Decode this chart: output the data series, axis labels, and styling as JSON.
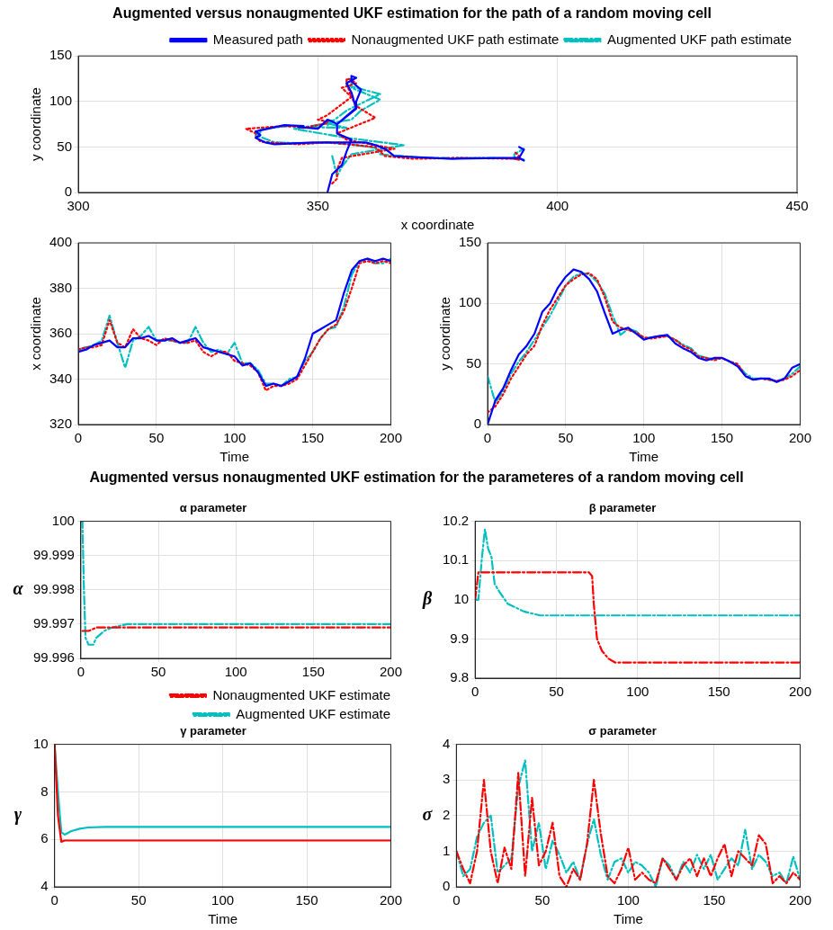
{
  "chart_data": [
    {
      "type": "line",
      "title": "Augmented versus nonaugmented UKF estimation for the path of a random moving cell",
      "xlabel": "x coordinate",
      "ylabel": "y coordinate",
      "xlim": [
        300,
        450
      ],
      "xticks": [
        300,
        350,
        400,
        450
      ],
      "ylim": [
        0,
        150
      ],
      "yticks": [
        0,
        50,
        100,
        150
      ],
      "grid": true,
      "legend": "top right",
      "marker": "none",
      "series": [
        {
          "name": "Measured path",
          "color": "#0000ff",
          "line_style": "solid",
          "x": [
            352,
            353,
            355,
            356,
            357,
            354,
            354,
            358,
            358,
            359,
            357,
            357,
            358,
            356,
            357,
            358,
            354,
            353,
            352,
            351,
            350,
            346,
            347,
            343,
            337,
            338,
            337,
            339,
            341,
            349,
            360,
            362,
            364,
            366,
            378,
            388,
            392,
            393,
            392,
            393,
            392
          ],
          "values": [
            0,
            20,
            30,
            45,
            58,
            65,
            75,
            93,
            100,
            113,
            122,
            128,
            126,
            120,
            110,
            92,
            75,
            78,
            80,
            75,
            70,
            72,
            73,
            74,
            67,
            63,
            60,
            55,
            53,
            55,
            55,
            52,
            48,
            40,
            37,
            38,
            38,
            35,
            38,
            47,
            50
          ]
        },
        {
          "name": "Nonaugmented UKF path estimate",
          "color": "#ff0000",
          "line_style": "dotted",
          "x": [
            353,
            354,
            354,
            355,
            366,
            356,
            354,
            362,
            358,
            357,
            355,
            358,
            357,
            356,
            356,
            357,
            352,
            350,
            352,
            352,
            348,
            347,
            346,
            343,
            335,
            337,
            337,
            338,
            340,
            346,
            352,
            358,
            362,
            364,
            370,
            380,
            391,
            392,
            391,
            392,
            391
          ],
          "values": [
            10,
            15,
            25,
            38,
            48,
            58,
            65,
            82,
            95,
            105,
            115,
            120,
            124,
            125,
            120,
            105,
            85,
            80,
            78,
            76,
            72,
            71,
            72,
            73,
            70,
            65,
            62,
            56,
            55,
            53,
            55,
            52,
            50,
            40,
            37,
            38,
            37,
            36,
            37,
            40,
            45
          ]
        },
        {
          "name": "Augmented UKF path estimate",
          "color": "#00bfbf",
          "line_style": "dashed",
          "x": [
            353,
            354,
            355,
            357,
            368,
            356,
            345,
            357,
            359,
            363,
            357,
            357,
            357,
            356,
            356,
            363,
            356,
            352,
            353,
            351,
            356,
            347,
            347,
            344,
            338,
            338,
            337,
            340,
            341,
            348,
            352,
            358,
            362,
            363,
            372,
            386,
            392,
            393,
            391,
            391,
            393
          ],
          "values": [
            40,
            18,
            28,
            42,
            52,
            60,
            70,
            80,
            90,
            102,
            115,
            122,
            125,
            124,
            118,
            108,
            90,
            74,
            79,
            77,
            71,
            72,
            73,
            73,
            70,
            66,
            63,
            57,
            55,
            54,
            55,
            52,
            49,
            42,
            38,
            38,
            37,
            36,
            38,
            42,
            48
          ]
        }
      ]
    },
    {
      "type": "line",
      "xlabel": "Time",
      "ylabel": "x coordinate",
      "xlim": [
        0,
        200
      ],
      "xticks": [
        0,
        50,
        100,
        150,
        200
      ],
      "ylim": [
        320,
        400
      ],
      "yticks": [
        320,
        340,
        360,
        380,
        400
      ],
      "grid": true,
      "marker": "none",
      "x": [
        0,
        5,
        10,
        15,
        20,
        25,
        30,
        35,
        40,
        45,
        50,
        55,
        60,
        65,
        70,
        75,
        80,
        85,
        90,
        95,
        100,
        105,
        110,
        115,
        120,
        125,
        130,
        135,
        140,
        145,
        150,
        155,
        160,
        165,
        170,
        175,
        180,
        185,
        190,
        195,
        200
      ],
      "series": [
        {
          "color": "#0000ff",
          "line_style": "solid",
          "values": [
            352,
            353,
            355,
            356,
            357,
            354,
            354,
            358,
            358,
            359,
            357,
            357,
            358,
            356,
            357,
            358,
            354,
            353,
            352,
            351,
            350,
            346,
            347,
            343,
            337,
            338,
            337,
            339,
            341,
            349,
            360,
            362,
            364,
            366,
            378,
            388,
            392,
            393,
            392,
            393,
            392
          ]
        },
        {
          "color": "#ff0000",
          "line_style": "dotted",
          "values": [
            353,
            354,
            354,
            355,
            366,
            356,
            354,
            362,
            358,
            357,
            355,
            358,
            357,
            356,
            356,
            357,
            352,
            350,
            352,
            352,
            348,
            347,
            346,
            343,
            335,
            337,
            337,
            338,
            340,
            346,
            352,
            358,
            362,
            364,
            370,
            380,
            391,
            392,
            391,
            392,
            391
          ]
        },
        {
          "color": "#00bfbf",
          "line_style": "dashed",
          "values": [
            353,
            354,
            355,
            357,
            368,
            356,
            345,
            357,
            359,
            363,
            357,
            357,
            357,
            356,
            356,
            363,
            356,
            352,
            353,
            351,
            356,
            347,
            347,
            344,
            338,
            338,
            337,
            340,
            341,
            348,
            352,
            358,
            362,
            363,
            372,
            386,
            392,
            393,
            391,
            391,
            393
          ]
        }
      ]
    },
    {
      "type": "line",
      "xlabel": "Time",
      "ylabel": "y coordinate",
      "xlim": [
        0,
        200
      ],
      "xticks": [
        0,
        50,
        100,
        150,
        200
      ],
      "ylim": [
        0,
        150
      ],
      "yticks": [
        0,
        50,
        100,
        150
      ],
      "grid": true,
      "marker": "none",
      "x": [
        0,
        5,
        10,
        15,
        20,
        25,
        30,
        35,
        40,
        45,
        50,
        55,
        60,
        65,
        70,
        75,
        80,
        85,
        90,
        95,
        100,
        105,
        110,
        115,
        120,
        125,
        130,
        135,
        140,
        145,
        150,
        155,
        160,
        165,
        170,
        175,
        180,
        185,
        190,
        195,
        200
      ],
      "series": [
        {
          "color": "#0000ff",
          "line_style": "solid",
          "values": [
            0,
            20,
            30,
            45,
            58,
            65,
            75,
            93,
            100,
            113,
            122,
            128,
            126,
            120,
            110,
            92,
            75,
            78,
            80,
            75,
            70,
            72,
            73,
            74,
            67,
            63,
            60,
            55,
            53,
            55,
            55,
            52,
            48,
            40,
            37,
            38,
            38,
            35,
            38,
            47,
            50
          ]
        },
        {
          "color": "#ff0000",
          "line_style": "dotted",
          "values": [
            10,
            15,
            25,
            38,
            48,
            58,
            65,
            82,
            95,
            105,
            115,
            120,
            124,
            125,
            120,
            105,
            85,
            80,
            78,
            76,
            72,
            71,
            72,
            73,
            70,
            65,
            62,
            56,
            55,
            53,
            55,
            52,
            50,
            40,
            37,
            38,
            37,
            36,
            37,
            40,
            45
          ]
        },
        {
          "color": "#00bfbf",
          "line_style": "dashed",
          "values": [
            40,
            18,
            28,
            42,
            52,
            60,
            70,
            80,
            90,
            102,
            115,
            122,
            125,
            124,
            118,
            108,
            90,
            74,
            79,
            77,
            71,
            72,
            73,
            73,
            70,
            66,
            63,
            57,
            55,
            54,
            55,
            52,
            49,
            42,
            38,
            38,
            37,
            36,
            38,
            42,
            48
          ]
        }
      ]
    },
    {
      "type": "other",
      "title": "Augmented versus nonaugmented UKF estimation for the parameteres of a random moving cell"
    },
    {
      "type": "line",
      "title": "α parameter",
      "ylabel": "α",
      "xlim": [
        0,
        200
      ],
      "xticks": [
        0,
        50,
        100,
        150,
        200
      ],
      "ylim": [
        99.996,
        100
      ],
      "yticks": [
        99.996,
        99.997,
        99.998,
        99.999,
        100
      ],
      "grid": true,
      "legend": "bottom",
      "marker": "none",
      "series": [
        {
          "name": "Nonaugmented UKF estimate",
          "color": "#ff0000",
          "line_style": "dashed",
          "x": [
            1,
            5,
            10,
            20,
            50,
            200
          ],
          "values": [
            99.9968,
            99.9968,
            99.9969,
            99.9969,
            99.9969,
            99.9969
          ]
        },
        {
          "name": "Augmented UKF estimate",
          "color": "#00bfbf",
          "line_style": "dashed",
          "x": [
            0,
            1,
            2,
            3,
            5,
            8,
            10,
            15,
            20,
            30,
            50,
            200
          ],
          "values": [
            100,
            100,
            99.998,
            99.9966,
            99.9964,
            99.9964,
            99.9966,
            99.9968,
            99.9969,
            99.997,
            99.997,
            99.997
          ]
        }
      ]
    },
    {
      "type": "line",
      "title": "β parameter",
      "ylabel": "β",
      "xlim": [
        0,
        200
      ],
      "xticks": [
        0,
        50,
        100,
        150,
        200
      ],
      "ylim": [
        9.8,
        10.2
      ],
      "yticks": [
        9.8,
        9.9,
        10,
        10.1,
        10.2
      ],
      "grid": true,
      "marker": "none",
      "series": [
        {
          "color": "#ff0000",
          "line_style": "dashed",
          "x": [
            0,
            2,
            3,
            70,
            72,
            73,
            75,
            78,
            82,
            86,
            90,
            200
          ],
          "values": [
            10,
            10.07,
            10.07,
            10.07,
            10.06,
            9.99,
            9.9,
            9.87,
            9.85,
            9.84,
            9.84,
            9.84
          ]
        },
        {
          "color": "#00bfbf",
          "line_style": "dashed",
          "x": [
            0,
            2,
            4,
            6,
            8,
            10,
            12,
            15,
            20,
            25,
            30,
            40,
            50,
            200
          ],
          "values": [
            10,
            10,
            10.1,
            10.18,
            10.13,
            10.11,
            10.04,
            10.02,
            9.99,
            9.98,
            9.97,
            9.96,
            9.96,
            9.96
          ]
        }
      ]
    },
    {
      "type": "line",
      "title": "γ parameter",
      "xlabel": "Time",
      "ylabel": "γ",
      "xlim": [
        0,
        200
      ],
      "xticks": [
        0,
        50,
        100,
        150,
        200
      ],
      "ylim": [
        4,
        10
      ],
      "yticks": [
        4,
        6,
        8,
        10
      ],
      "grid": true,
      "marker": "none",
      "series": [
        {
          "color": "#ff0000",
          "line_style": "solid",
          "x": [
            0,
            2,
            4,
            6,
            10,
            200
          ],
          "values": [
            10,
            7,
            5.9,
            5.95,
            5.95,
            5.95
          ]
        },
        {
          "color": "#00bfbf",
          "line_style": "solid",
          "x": [
            0,
            2,
            4,
            6,
            10,
            15,
            20,
            30,
            50,
            200
          ],
          "values": [
            10,
            8,
            6.3,
            6.2,
            6.35,
            6.45,
            6.5,
            6.52,
            6.52,
            6.52
          ]
        }
      ]
    },
    {
      "type": "line",
      "title": "σ parameter",
      "xlabel": "Time",
      "ylabel": "σ",
      "xlim": [
        0,
        200
      ],
      "xticks": [
        0,
        50,
        100,
        150,
        200
      ],
      "ylim": [
        0,
        4
      ],
      "yticks": [
        0,
        1,
        2,
        3,
        4
      ],
      "grid": true,
      "marker": "none",
      "x": [
        0,
        4,
        8,
        12,
        16,
        20,
        24,
        28,
        32,
        36,
        40,
        44,
        48,
        52,
        56,
        60,
        64,
        68,
        72,
        76,
        80,
        84,
        88,
        92,
        96,
        100,
        104,
        108,
        112,
        116,
        120,
        124,
        128,
        132,
        136,
        140,
        144,
        148,
        152,
        156,
        160,
        164,
        168,
        172,
        176,
        180,
        184,
        188,
        192,
        196,
        200
      ],
      "series": [
        {
          "color": "#ff0000",
          "line_style": "dashed",
          "values": [
            1,
            0.5,
            0.1,
            1,
            3,
            1,
            0.1,
            1.1,
            0.5,
            3.2,
            0.3,
            2.5,
            0.6,
            1,
            1.8,
            0.3,
            0,
            0.5,
            0.2,
            1.2,
            3,
            1.5,
            0.3,
            0.1,
            0.5,
            1.1,
            0.2,
            0.4,
            0.2,
            0.1,
            0.8,
            0.5,
            0.2,
            0.6,
            0.8,
            0.3,
            0.8,
            0.3,
            0.8,
            1.2,
            0.3,
            1,
            0.8,
            0.6,
            1.45,
            1.2,
            0.1,
            0.3,
            0.1,
            0.4,
            0.2
          ]
        },
        {
          "color": "#00bfbf",
          "line_style": "dashed",
          "values": [
            1,
            0.3,
            0.5,
            1.4,
            1.8,
            2,
            0.4,
            0.6,
            0.8,
            2.8,
            3.55,
            1,
            1.8,
            0.5,
            1.3,
            0.9,
            0.4,
            0.7,
            0.2,
            1.2,
            1.9,
            0.9,
            0.2,
            0.7,
            0.8,
            0.4,
            0.7,
            0.6,
            0.4,
            0,
            0.8,
            0.6,
            0.2,
            0.7,
            0.4,
            0.9,
            0.5,
            0.9,
            0.2,
            0.5,
            0.8,
            0.6,
            1.6,
            0.5,
            0.9,
            0.7,
            0.3,
            0.4,
            0.1,
            0.85,
            0.2
          ]
        }
      ]
    }
  ]
}
